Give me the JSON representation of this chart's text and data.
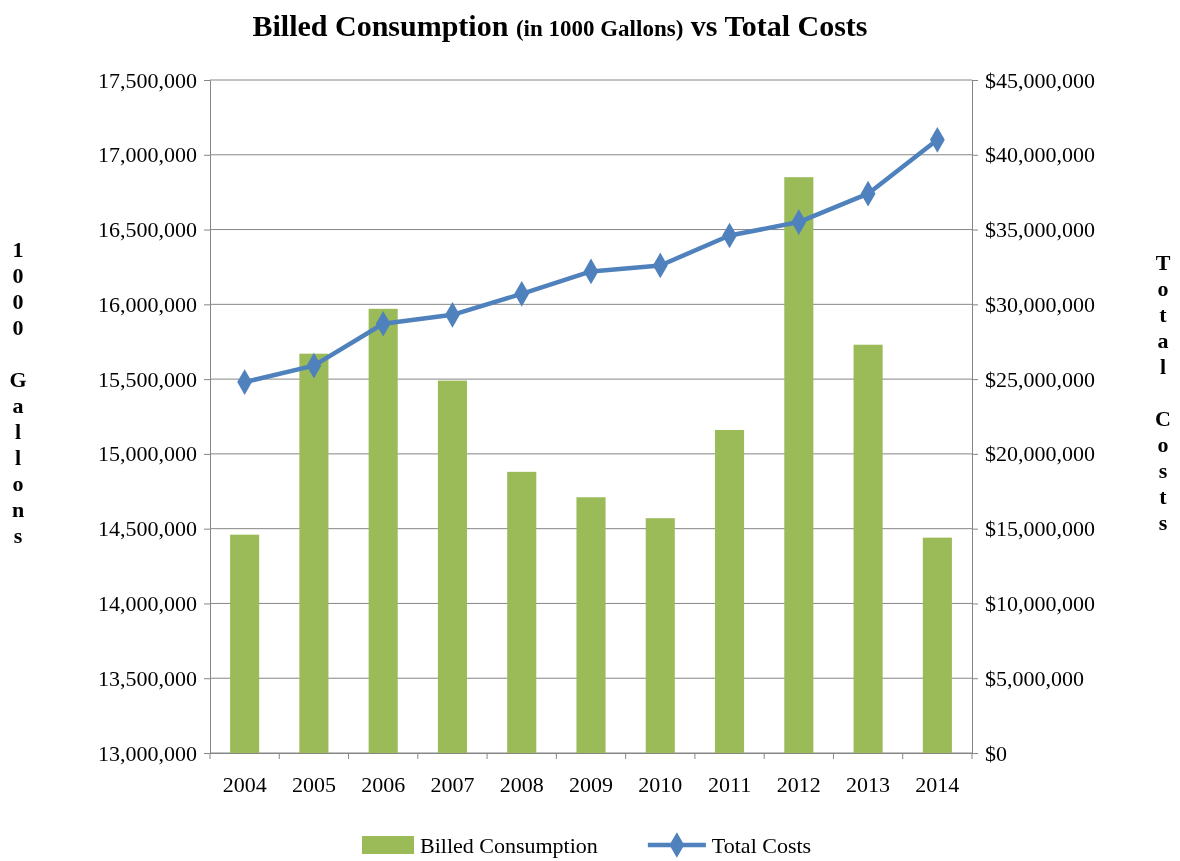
{
  "chart_data": {
    "type": "bar",
    "title": "Billed Consumption (in 1000 Gallons) vs Total Costs",
    "ylabel": "1000 Gallons",
    "y2label": "Total Costs",
    "categories": [
      "2004",
      "2005",
      "2006",
      "2007",
      "2008",
      "2009",
      "2010",
      "2011",
      "2012",
      "2013",
      "2014"
    ],
    "series": [
      {
        "name": "Billed Consumption",
        "color": "#9bbb59",
        "values": [
          14460000,
          15670000,
          15970000,
          15490000,
          14880000,
          14710000,
          14570000,
          15160000,
          16850000,
          15730000,
          14440000
        ]
      },
      {
        "name": "Total Costs",
        "type": "line",
        "axis": "y2",
        "color": "#4f81bd",
        "marker": "diamond",
        "values": [
          24800000,
          25900000,
          28700000,
          29300000,
          30700000,
          32200000,
          32600000,
          34600000,
          35500000,
          37400000,
          41000000
        ]
      }
    ],
    "ylim": [
      13000000,
      17500000
    ],
    "yticks": [
      {
        "value": 13000000,
        "label": "13,000,000"
      },
      {
        "value": 13500000,
        "label": "13,500,000"
      },
      {
        "value": 14000000,
        "label": "14,000,000"
      },
      {
        "value": 14500000,
        "label": "14,500,000"
      },
      {
        "value": 15000000,
        "label": "15,000,000"
      },
      {
        "value": 15500000,
        "label": "15,500,000"
      },
      {
        "value": 16000000,
        "label": "16,000,000"
      },
      {
        "value": 16500000,
        "label": "16,500,000"
      },
      {
        "value": 17000000,
        "label": "17,000,000"
      },
      {
        "value": 17500000,
        "label": "17,500,000"
      }
    ],
    "y2lim": [
      0,
      45000000
    ],
    "y2ticks": [
      {
        "value": 0,
        "label": "$0"
      },
      {
        "value": 5000000,
        "label": "$5,000,000"
      },
      {
        "value": 10000000,
        "label": "$10,000,000"
      },
      {
        "value": 15000000,
        "label": "$15,000,000"
      },
      {
        "value": 20000000,
        "label": "$20,000,000"
      },
      {
        "value": 25000000,
        "label": "$25,000,000"
      },
      {
        "value": 30000000,
        "label": "$30,000,000"
      },
      {
        "value": 35000000,
        "label": "$35,000,000"
      },
      {
        "value": 40000000,
        "label": "$40,000,000"
      },
      {
        "value": 45000000,
        "label": "$45,000,000"
      }
    ],
    "grid": "y",
    "legend": "bottom"
  }
}
